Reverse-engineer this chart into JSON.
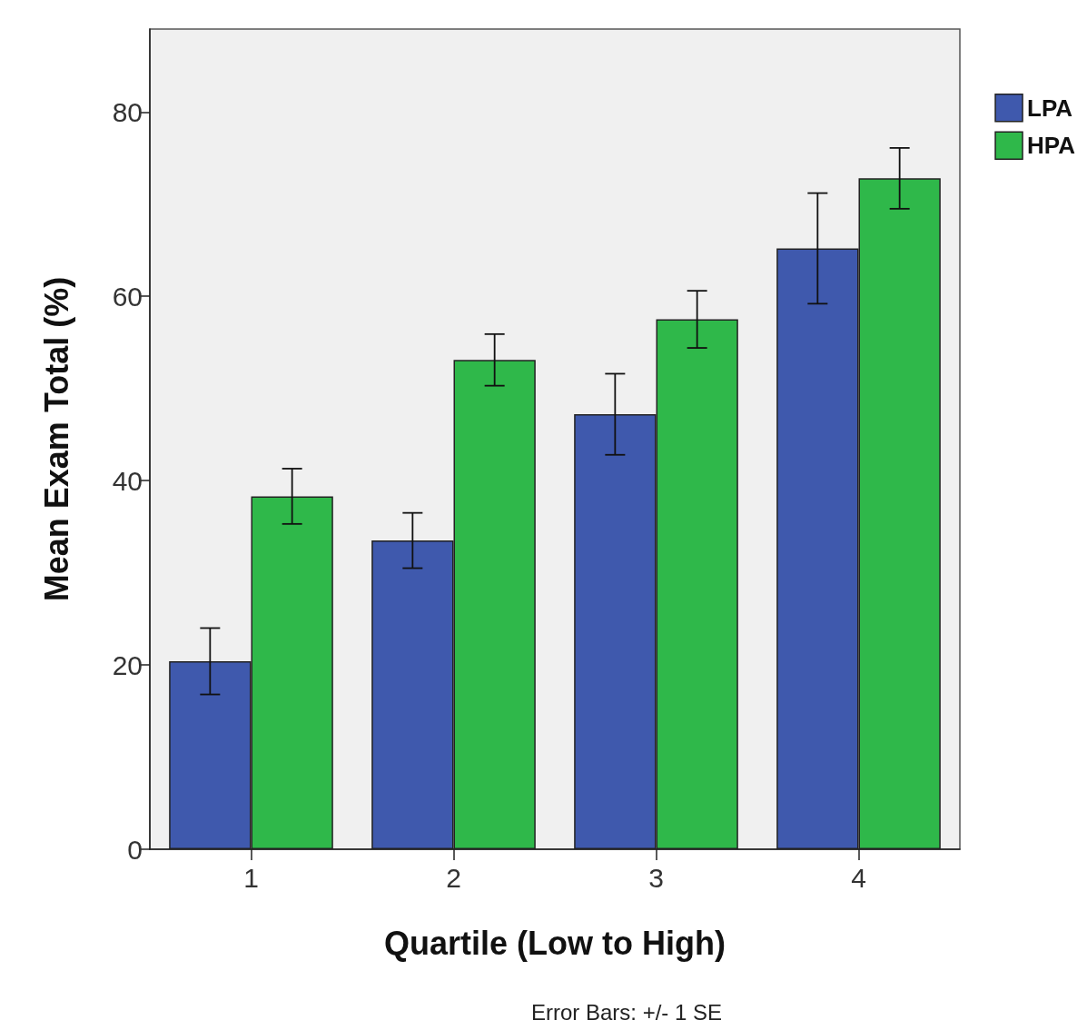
{
  "chart_data": {
    "type": "bar",
    "xlabel": "Quartile (Low to High)",
    "ylabel": "Mean Exam Total (%)",
    "categories": [
      "1",
      "2",
      "3",
      "4"
    ],
    "series": [
      {
        "name": "LPA",
        "color": "#3f59ad",
        "values": [
          20.4,
          33.5,
          47.2,
          65.2
        ],
        "errors": [
          3.6,
          3.0,
          4.4,
          6.0
        ]
      },
      {
        "name": "HPA",
        "color": "#2fb84a",
        "values": [
          38.3,
          53.1,
          57.5,
          72.8
        ],
        "errors": [
          3.0,
          2.8,
          3.1,
          3.3
        ]
      }
    ],
    "ylim": [
      0,
      89
    ],
    "yticks": [
      0,
      20,
      40,
      60,
      80
    ],
    "grid": false,
    "legend": "top right",
    "annotations": [
      "Error Bars: +/- 1 SE"
    ]
  }
}
